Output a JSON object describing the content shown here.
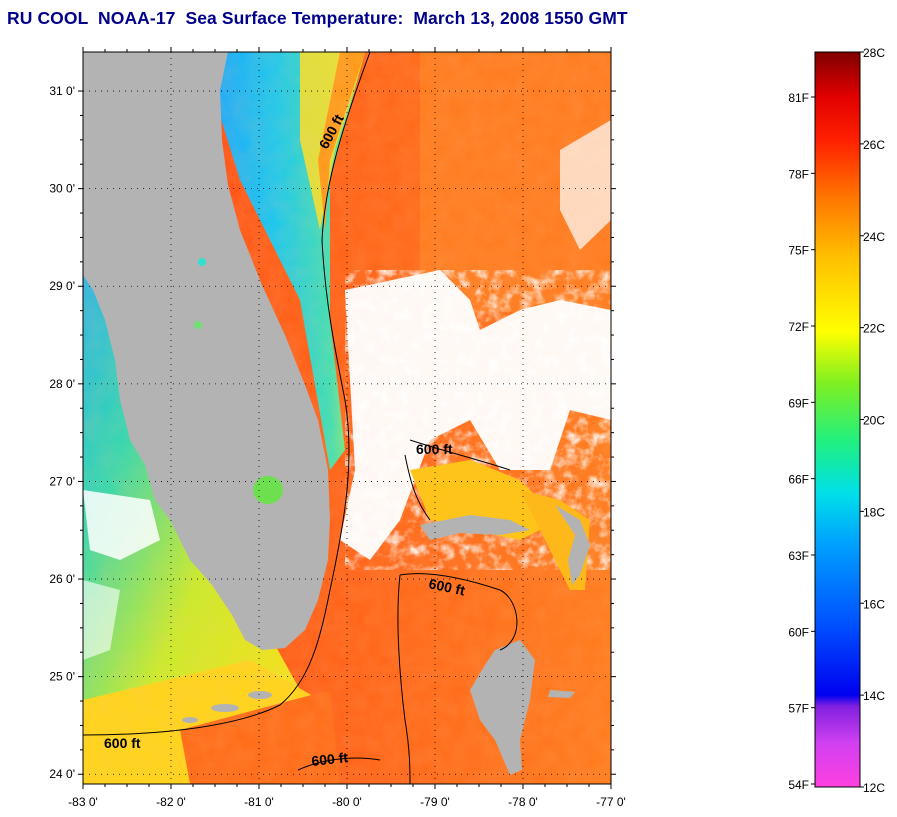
{
  "title": "RU COOL  NOAA-17  Sea Surface Temperature:  March 13, 2008 1550 GMT",
  "map": {
    "lon_range": [
      -83,
      -77
    ],
    "lat_range": [
      23.9,
      31.4
    ],
    "lat_ticks": [
      "31 0'",
      "30 0'",
      "29 0'",
      "28 0'",
      "27 0'",
      "26 0'",
      "25 0'",
      "24 0'"
    ],
    "lon_ticks": [
      "-83 0'",
      "-82 0'",
      "-81 0'",
      "-80 0'",
      "-79 0'",
      "-78 0'",
      "-77 0'"
    ],
    "contour_label": "600 ft",
    "colors": {
      "land": "#b3b3b3",
      "cloud": "#ffffff",
      "gulf_stream": "#ff3a10",
      "atlantic": "#ff7a18",
      "coastal_shelf": "#12c8ff",
      "gulf_shelf": "#d8f020"
    }
  },
  "colorbar": {
    "celsius_labels": [
      "28C",
      "26C",
      "24C",
      "22C",
      "20C",
      "18C",
      "16C",
      "14C",
      "12C"
    ],
    "fahrenheit_labels": [
      "81F",
      "78F",
      "75F",
      "72F",
      "69F",
      "66F",
      "63F",
      "60F",
      "57F",
      "54F"
    ],
    "range_c": [
      12,
      28
    ]
  }
}
